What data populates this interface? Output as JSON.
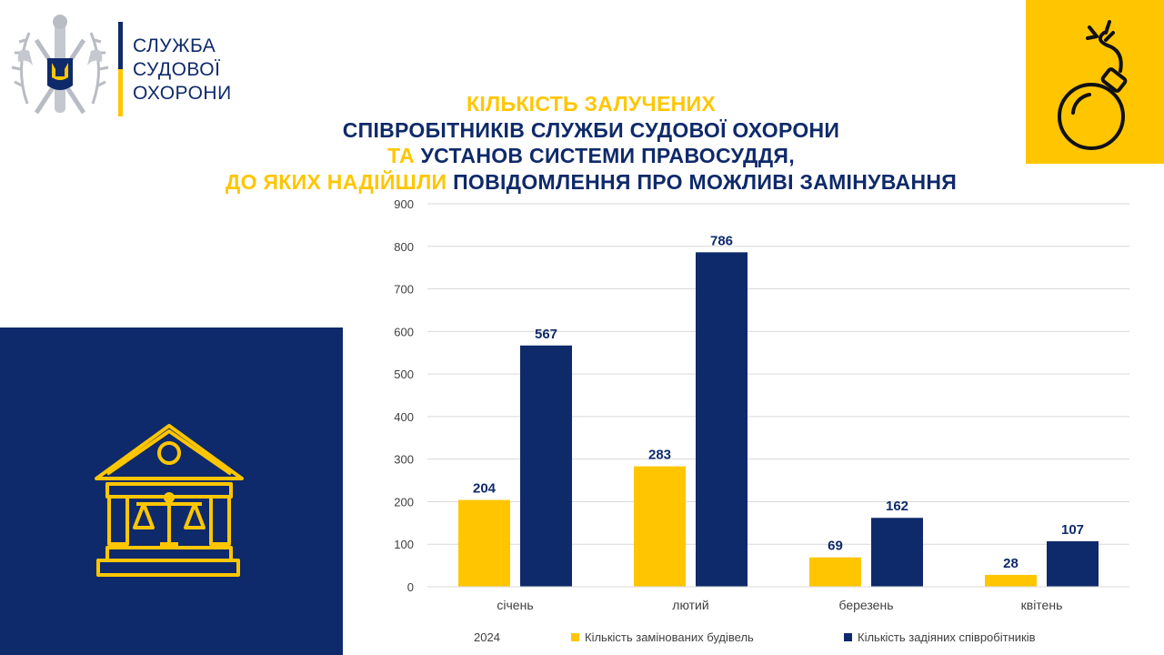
{
  "org": {
    "name_lines": [
      "СЛУЖБА",
      "СУДОВОЇ",
      "ОХОРОНИ"
    ],
    "logo_icon": "court-security-emblem-icon"
  },
  "title": {
    "lines": [
      [
        {
          "text": "КІЛЬКІСТЬ ЗАЛУЧЕНИХ",
          "color": "#ffc600"
        }
      ],
      [
        {
          "text": "СПІВРОБІТНИКІВ СЛУЖБИ СУДОВОЇ ОХОРОНИ",
          "color": "#0f2a6a"
        }
      ],
      [
        {
          "text": "ТА ",
          "color": "#ffc600"
        },
        {
          "text": "УСТАНОВ СИСТЕМИ ПРАВОСУДДЯ,",
          "color": "#0f2a6a"
        }
      ],
      [
        {
          "text": "ДО ЯКИХ НАДІЙШЛИ ",
          "color": "#ffc600"
        },
        {
          "text": "ПОВІДОМЛЕННЯ ПРО МОЖЛИВІ ЗАМІНУВАННЯ",
          "color": "#0f2a6a"
        }
      ]
    ]
  },
  "decor": {
    "bomb_icon": "bomb-icon",
    "courthouse_icon": "courthouse-scales-icon",
    "navy": "#0f2a6a",
    "yellow": "#ffc600"
  },
  "chart_data": {
    "type": "bar",
    "categories": [
      "січень",
      "лютий",
      "березень",
      "квітень"
    ],
    "series": [
      {
        "name": "Кількість замінованих будівель",
        "values": [
          204,
          283,
          69,
          28
        ],
        "color": "#ffc600"
      },
      {
        "name": "Кількість задіяних співробітників",
        "values": [
          567,
          786,
          162,
          107
        ],
        "color": "#0f2a6a"
      }
    ],
    "y_ticks": [
      0,
      100,
      200,
      300,
      400,
      500,
      600,
      700,
      800,
      900
    ],
    "ylim": [
      0,
      900
    ],
    "grid": true,
    "data_labels": true,
    "legend_position": "bottom",
    "legend_prefix": "2024"
  }
}
